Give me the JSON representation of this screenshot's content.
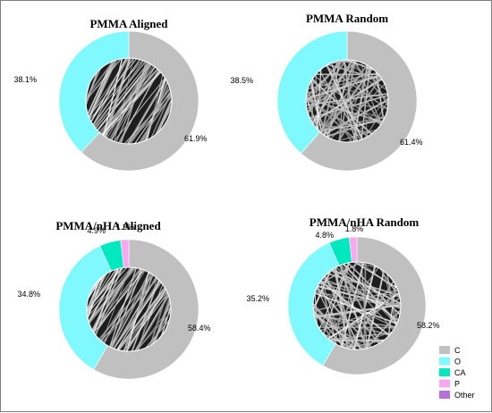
{
  "colors": {
    "C": "#c0c0c0",
    "O": "#7ff8fe",
    "CA": "#00e8c0",
    "P": "#f7a8f0",
    "Other": "#b772d9"
  },
  "legend": {
    "placement": "bottom-right",
    "entries": [
      "C",
      "O",
      "CA",
      "P",
      "Other"
    ]
  },
  "chart_data": [
    {
      "type": "pie",
      "title": "PMMA Aligned",
      "inner_texture": "aligned-fibers",
      "slices": [
        {
          "label": "C",
          "value": 61.9,
          "text": "61.9%"
        },
        {
          "label": "O",
          "value": 38.1,
          "text": "38.1%"
        }
      ]
    },
    {
      "type": "pie",
      "title": "PMMA Random",
      "inner_texture": "random-fibers",
      "slices": [
        {
          "label": "C",
          "value": 61.4,
          "text": "61.4%"
        },
        {
          "label": "O",
          "value": 38.5,
          "text": "38.5%"
        }
      ]
    },
    {
      "type": "pie",
      "title": "PMMA/nHA Aligned",
      "inner_texture": "aligned-fibers",
      "slices": [
        {
          "label": "C",
          "value": 58.4,
          "text": "58.4%"
        },
        {
          "label": "O",
          "value": 34.8,
          "text": "34.8%"
        },
        {
          "label": "CA",
          "value": 4.9,
          "text": "4.9%"
        },
        {
          "label": "P",
          "value": 1.9,
          "text": "1.9%"
        }
      ]
    },
    {
      "type": "pie",
      "title": "PMMA/nHA Random",
      "inner_texture": "random-fibers",
      "slices": [
        {
          "label": "C",
          "value": 58.2,
          "text": "58.2%"
        },
        {
          "label": "O",
          "value": 35.2,
          "text": "35.2%"
        },
        {
          "label": "CA",
          "value": 4.8,
          "text": "4.8%"
        },
        {
          "label": "P",
          "value": 1.8,
          "text": "1.8%"
        }
      ]
    }
  ]
}
